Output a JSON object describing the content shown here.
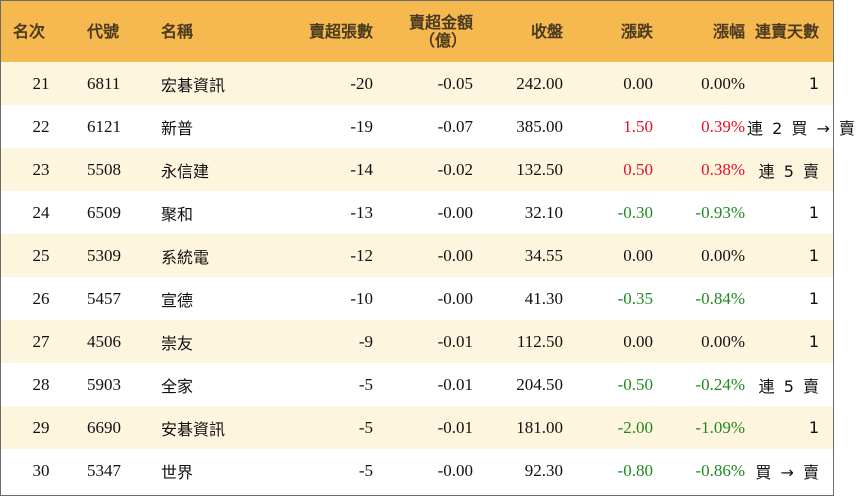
{
  "headers": {
    "rank": "名次",
    "code": "代號",
    "name": "名稱",
    "net_sell_lots": "賣超張數",
    "net_sell_amount_line1": "賣超金額",
    "net_sell_amount_line2": "（億）",
    "close": "收盤",
    "change": "漲跌",
    "change_pct": "漲幅",
    "consecutive_days": "連賣天數"
  },
  "colors": {
    "header_bg": "#f6b94f",
    "row_alt_bg": "#fef5de",
    "up": "#e0102a",
    "down": "#1f8a1f"
  },
  "rows": [
    {
      "rank": "21",
      "code": "6811",
      "name": "宏碁資訊",
      "lots": "-20",
      "amount": "-0.05",
      "close": "242.00",
      "change": "0.00",
      "pct": "0.00%",
      "trend": "flat",
      "days": "1"
    },
    {
      "rank": "22",
      "code": "6121",
      "name": "新普",
      "lots": "-19",
      "amount": "-0.07",
      "close": "385.00",
      "change": "1.50",
      "pct": "0.39%",
      "trend": "up",
      "days": "連 2 買 → 賣"
    },
    {
      "rank": "23",
      "code": "5508",
      "name": "永信建",
      "lots": "-14",
      "amount": "-0.02",
      "close": "132.50",
      "change": "0.50",
      "pct": "0.38%",
      "trend": "up",
      "days": "連 5 賣"
    },
    {
      "rank": "24",
      "code": "6509",
      "name": "聚和",
      "lots": "-13",
      "amount": "-0.00",
      "close": "32.10",
      "change": "-0.30",
      "pct": "-0.93%",
      "trend": "down",
      "days": "1"
    },
    {
      "rank": "25",
      "code": "5309",
      "name": "系統電",
      "lots": "-12",
      "amount": "-0.00",
      "close": "34.55",
      "change": "0.00",
      "pct": "0.00%",
      "trend": "flat",
      "days": "1"
    },
    {
      "rank": "26",
      "code": "5457",
      "name": "宣德",
      "lots": "-10",
      "amount": "-0.00",
      "close": "41.30",
      "change": "-0.35",
      "pct": "-0.84%",
      "trend": "down",
      "days": "1"
    },
    {
      "rank": "27",
      "code": "4506",
      "name": "崇友",
      "lots": "-9",
      "amount": "-0.01",
      "close": "112.50",
      "change": "0.00",
      "pct": "0.00%",
      "trend": "flat",
      "days": "1"
    },
    {
      "rank": "28",
      "code": "5903",
      "name": "全家",
      "lots": "-5",
      "amount": "-0.01",
      "close": "204.50",
      "change": "-0.50",
      "pct": "-0.24%",
      "trend": "down",
      "days": "連 5 賣"
    },
    {
      "rank": "29",
      "code": "6690",
      "name": "安碁資訊",
      "lots": "-5",
      "amount": "-0.01",
      "close": "181.00",
      "change": "-2.00",
      "pct": "-1.09%",
      "trend": "down",
      "days": "1"
    },
    {
      "rank": "30",
      "code": "5347",
      "name": "世界",
      "lots": "-5",
      "amount": "-0.00",
      "close": "92.30",
      "change": "-0.80",
      "pct": "-0.86%",
      "trend": "down",
      "days": "買 → 賣"
    }
  ]
}
